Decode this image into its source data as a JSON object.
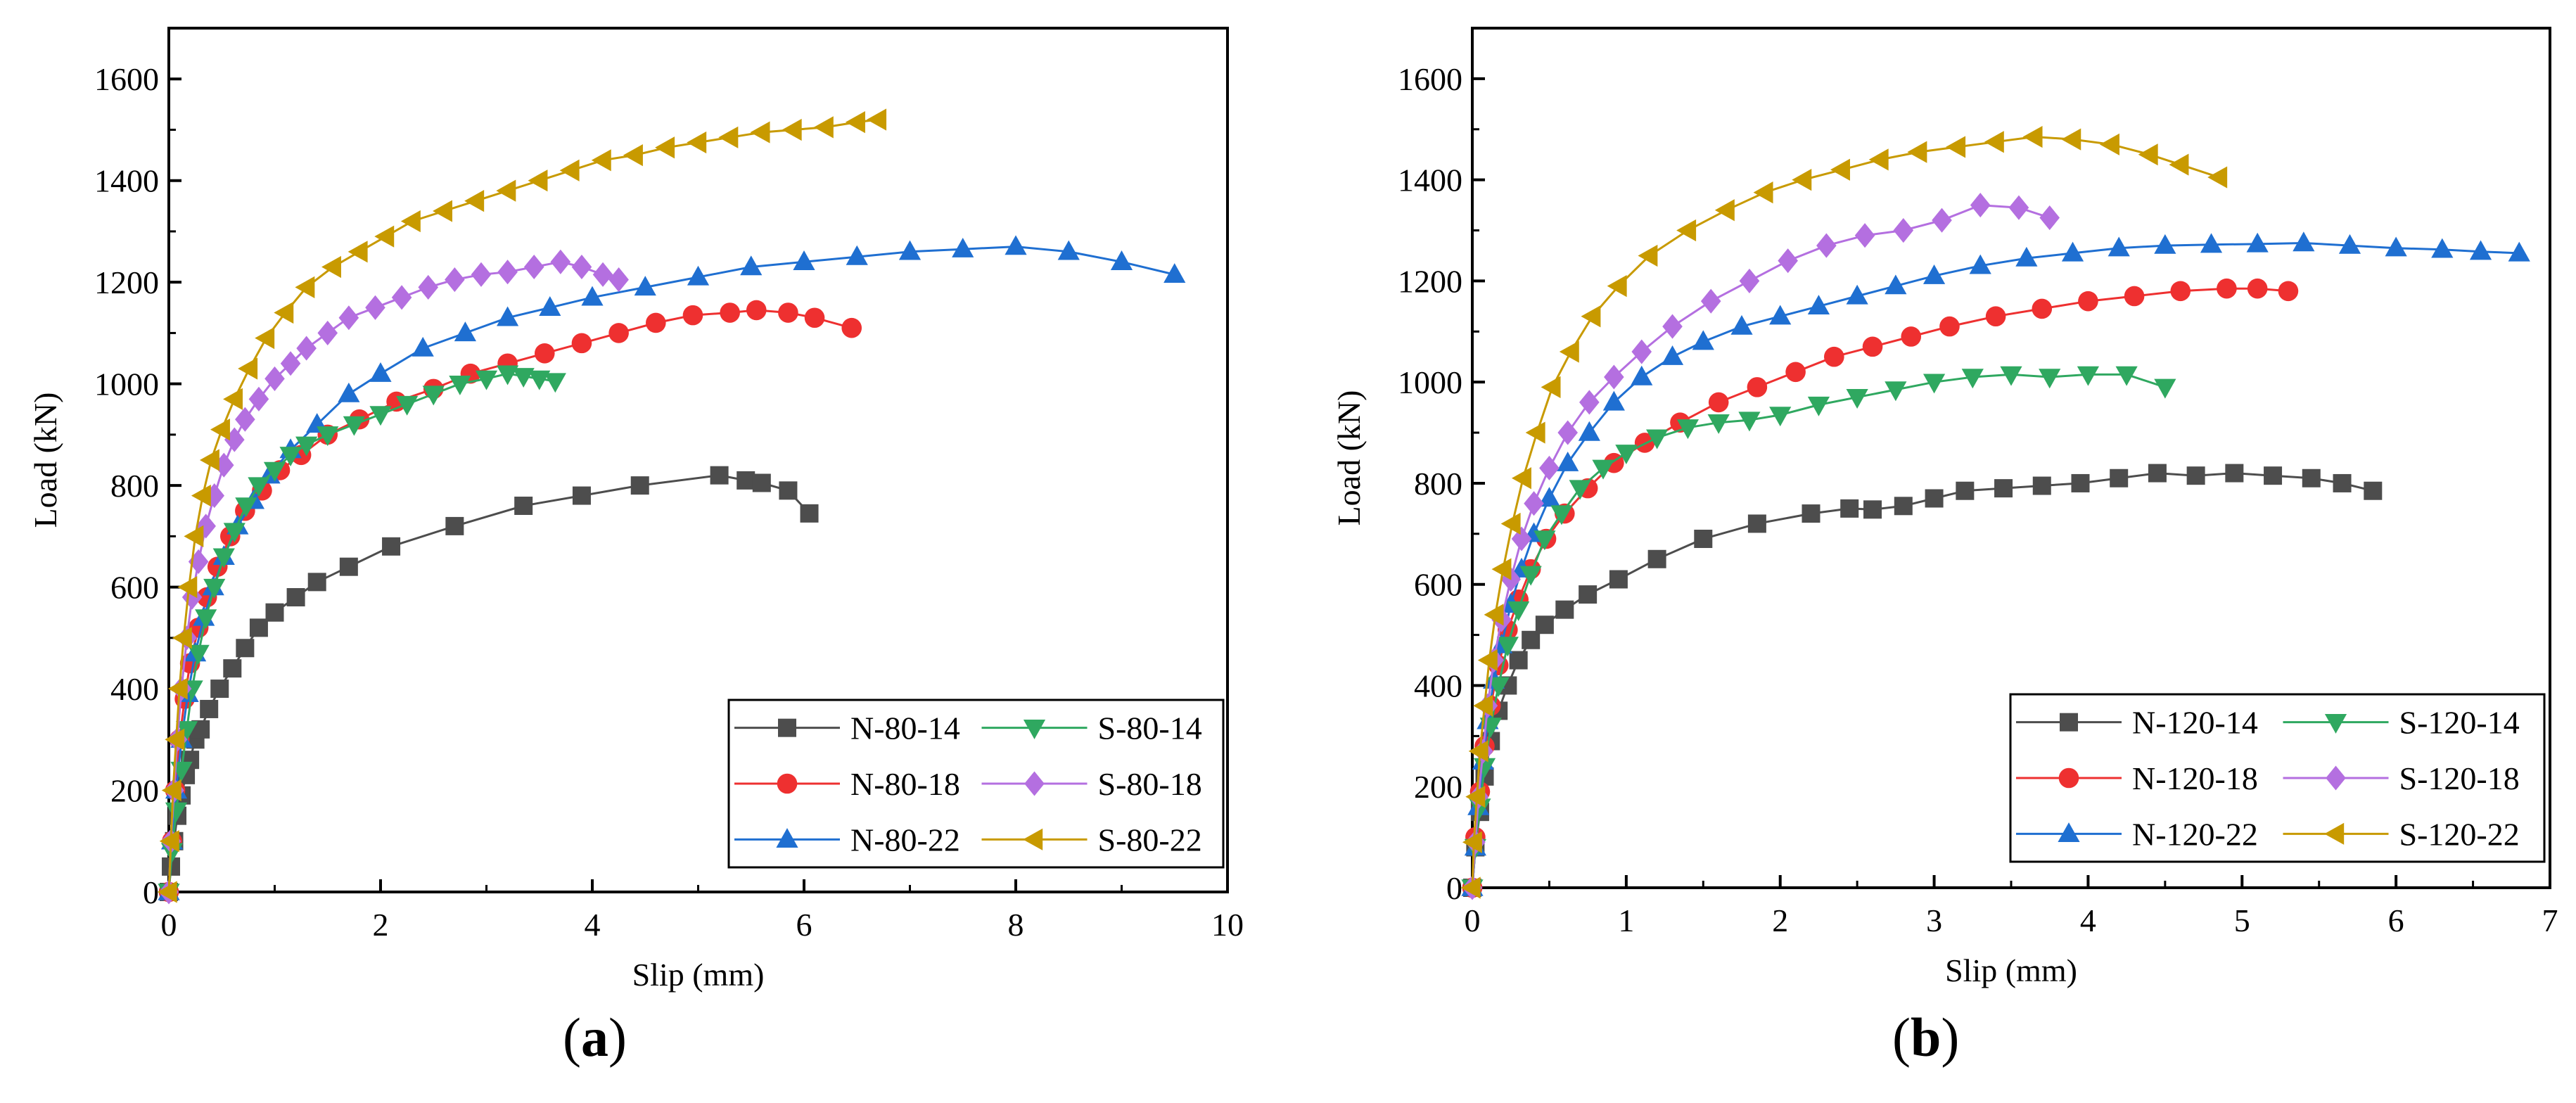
{
  "charts": [
    {
      "caption_letter": "a",
      "chart_data": {
        "type": "line",
        "xlabel": "Slip (mm)",
        "ylabel": "Load (kN)",
        "xlim": [
          0,
          10
        ],
        "ylim": [
          0,
          1700
        ],
        "xticks": [
          0,
          2,
          4,
          6,
          8,
          10
        ],
        "yticks": [
          0,
          200,
          400,
          600,
          800,
          1000,
          1200,
          1400,
          1600
        ],
        "legend_position": "bottom-right",
        "legend_columns": 2,
        "series": [
          {
            "name": "N-80-14",
            "color": "#4d4d4d",
            "marker": "square",
            "x": [
              0,
              0.02,
              0.05,
              0.08,
              0.12,
              0.16,
              0.2,
              0.25,
              0.3,
              0.38,
              0.48,
              0.6,
              0.72,
              0.85,
              1.0,
              1.2,
              1.4,
              1.7,
              2.1,
              2.7,
              3.35,
              3.9,
              4.45,
              5.2,
              5.45,
              5.6,
              5.85,
              6.05
            ],
            "y": [
              0,
              50,
              100,
              150,
              190,
              230,
              260,
              300,
              320,
              360,
              400,
              440,
              480,
              520,
              550,
              580,
              610,
              640,
              680,
              720,
              760,
              780,
              800,
              820,
              810,
              805,
              790,
              745
            ]
          },
          {
            "name": "N-80-18",
            "color": "#ee3030",
            "marker": "circle",
            "x": [
              0,
              0.03,
              0.06,
              0.1,
              0.15,
              0.2,
              0.28,
              0.36,
              0.46,
              0.58,
              0.72,
              0.88,
              1.05,
              1.25,
              1.5,
              1.8,
              2.15,
              2.5,
              2.85,
              3.2,
              3.55,
              3.9,
              4.25,
              4.6,
              4.95,
              5.3,
              5.55,
              5.85,
              6.1,
              6.45
            ],
            "y": [
              0,
              100,
              200,
              300,
              380,
              450,
              520,
              580,
              640,
              700,
              750,
              790,
              830,
              860,
              900,
              930,
              965,
              990,
              1020,
              1040,
              1060,
              1080,
              1100,
              1120,
              1135,
              1140,
              1145,
              1140,
              1130,
              1110
            ]
          },
          {
            "name": "N-80-22",
            "color": "#1f6fd1",
            "marker": "triangle-up",
            "x": [
              0,
              0.03,
              0.07,
              0.12,
              0.18,
              0.25,
              0.33,
              0.42,
              0.52,
              0.65,
              0.8,
              0.95,
              1.15,
              1.4,
              1.7,
              2.0,
              2.4,
              2.8,
              3.2,
              3.6,
              4.0,
              4.5,
              5.0,
              5.5,
              6.0,
              6.5,
              7.0,
              7.5,
              8.0,
              8.5,
              9.0,
              9.5
            ],
            "y": [
              0,
              100,
              200,
              300,
              390,
              470,
              540,
              600,
              660,
              720,
              770,
              820,
              870,
              920,
              980,
              1020,
              1070,
              1100,
              1130,
              1150,
              1170,
              1190,
              1210,
              1230,
              1240,
              1250,
              1260,
              1265,
              1270,
              1260,
              1240,
              1215
            ]
          },
          {
            "name": "S-80-14",
            "color": "#2fa860",
            "marker": "triangle-down",
            "x": [
              0,
              0.03,
              0.07,
              0.12,
              0.17,
              0.22,
              0.28,
              0.35,
              0.43,
              0.52,
              0.62,
              0.73,
              0.85,
              1.0,
              1.15,
              1.3,
              1.5,
              1.75,
              2.0,
              2.25,
              2.5,
              2.75,
              3.0,
              3.2,
              3.35,
              3.5,
              3.65
            ],
            "y": [
              0,
              80,
              160,
              240,
              320,
              400,
              470,
              540,
              600,
              660,
              710,
              760,
              800,
              830,
              860,
              880,
              900,
              920,
              940,
              960,
              980,
              1000,
              1010,
              1020,
              1015,
              1010,
              1005
            ]
          },
          {
            "name": "S-80-18",
            "color": "#b46fe0",
            "marker": "diamond",
            "x": [
              0,
              0.02,
              0.05,
              0.08,
              0.12,
              0.17,
              0.22,
              0.28,
              0.35,
              0.43,
              0.52,
              0.62,
              0.72,
              0.85,
              1.0,
              1.15,
              1.3,
              1.5,
              1.7,
              1.95,
              2.2,
              2.45,
              2.7,
              2.95,
              3.2,
              3.45,
              3.7,
              3.9,
              4.1,
              4.25
            ],
            "y": [
              0,
              100,
              200,
              300,
              400,
              500,
              580,
              650,
              720,
              780,
              840,
              890,
              930,
              970,
              1010,
              1040,
              1070,
              1100,
              1130,
              1150,
              1170,
              1190,
              1205,
              1215,
              1220,
              1230,
              1240,
              1230,
              1215,
              1205
            ]
          },
          {
            "name": "S-80-22",
            "color": "#c89a00",
            "marker": "triangle-left",
            "x": [
              0,
              0.02,
              0.04,
              0.07,
              0.1,
              0.14,
              0.19,
              0.25,
              0.32,
              0.4,
              0.5,
              0.62,
              0.76,
              0.92,
              1.1,
              1.3,
              1.55,
              1.8,
              2.05,
              2.3,
              2.6,
              2.9,
              3.2,
              3.5,
              3.8,
              4.1,
              4.4,
              4.7,
              5.0,
              5.3,
              5.6,
              5.9,
              6.2,
              6.5,
              6.7
            ],
            "y": [
              0,
              100,
              200,
              300,
              400,
              500,
              600,
              700,
              780,
              850,
              910,
              970,
              1030,
              1090,
              1140,
              1190,
              1230,
              1260,
              1290,
              1320,
              1340,
              1360,
              1380,
              1400,
              1420,
              1440,
              1450,
              1465,
              1475,
              1485,
              1495,
              1500,
              1505,
              1515,
              1520
            ]
          }
        ]
      }
    },
    {
      "caption_letter": "b",
      "chart_data": {
        "type": "line",
        "xlabel": "Slip (mm)",
        "ylabel": "Load (kN)",
        "xlim": [
          0,
          7
        ],
        "ylim": [
          0,
          1700
        ],
        "xticks": [
          0,
          1,
          2,
          3,
          4,
          5,
          6,
          7
        ],
        "yticks": [
          0,
          200,
          400,
          600,
          800,
          1000,
          1200,
          1400,
          1600
        ],
        "legend_position": "bottom-right",
        "legend_columns": 2,
        "series": [
          {
            "name": "N-120-14",
            "color": "#4d4d4d",
            "marker": "square",
            "x": [
              0,
              0.02,
              0.05,
              0.08,
              0.12,
              0.17,
              0.23,
              0.3,
              0.38,
              0.47,
              0.6,
              0.75,
              0.95,
              1.2,
              1.5,
              1.85,
              2.2,
              2.45,
              2.6,
              2.8,
              3.0,
              3.2,
              3.45,
              3.7,
              3.95,
              4.2,
              4.45,
              4.7,
              4.95,
              5.2,
              5.45,
              5.65,
              5.85
            ],
            "y": [
              0,
              80,
              150,
              220,
              290,
              350,
              400,
              450,
              490,
              520,
              550,
              580,
              610,
              650,
              690,
              720,
              740,
              750,
              748,
              755,
              770,
              785,
              790,
              795,
              800,
              810,
              820,
              815,
              820,
              815,
              810,
              800,
              785
            ]
          },
          {
            "name": "N-120-18",
            "color": "#ee3030",
            "marker": "circle",
            "x": [
              0,
              0.02,
              0.05,
              0.08,
              0.12,
              0.17,
              0.23,
              0.3,
              0.38,
              0.48,
              0.6,
              0.75,
              0.92,
              1.12,
              1.35,
              1.6,
              1.85,
              2.1,
              2.35,
              2.6,
              2.85,
              3.1,
              3.4,
              3.7,
              4.0,
              4.3,
              4.6,
              4.9,
              5.1,
              5.3
            ],
            "y": [
              0,
              100,
              190,
              280,
              360,
              440,
              510,
              570,
              630,
              690,
              740,
              790,
              840,
              880,
              920,
              960,
              990,
              1020,
              1050,
              1070,
              1090,
              1110,
              1130,
              1145,
              1160,
              1170,
              1180,
              1185,
              1185,
              1180
            ]
          },
          {
            "name": "N-120-22",
            "color": "#1f6fd1",
            "marker": "triangle-up",
            "x": [
              0,
              0.02,
              0.04,
              0.07,
              0.1,
              0.14,
              0.19,
              0.25,
              0.32,
              0.4,
              0.5,
              0.62,
              0.76,
              0.92,
              1.1,
              1.3,
              1.5,
              1.75,
              2.0,
              2.25,
              2.5,
              2.75,
              3.0,
              3.3,
              3.6,
              3.9,
              4.2,
              4.5,
              4.8,
              5.1,
              5.4,
              5.7,
              6.0,
              6.3,
              6.55,
              6.8
            ],
            "y": [
              0,
              80,
              160,
              250,
              330,
              410,
              480,
              560,
              630,
              700,
              770,
              840,
              900,
              960,
              1010,
              1050,
              1080,
              1110,
              1130,
              1150,
              1170,
              1190,
              1210,
              1230,
              1245,
              1255,
              1265,
              1270,
              1272,
              1273,
              1275,
              1270,
              1265,
              1262,
              1258,
              1255
            ]
          },
          {
            "name": "S-120-14",
            "color": "#2fa860",
            "marker": "triangle-down",
            "x": [
              0,
              0.02,
              0.05,
              0.08,
              0.12,
              0.17,
              0.23,
              0.3,
              0.38,
              0.47,
              0.58,
              0.7,
              0.85,
              1.0,
              1.2,
              1.4,
              1.6,
              1.8,
              2.0,
              2.25,
              2.5,
              2.75,
              3.0,
              3.25,
              3.5,
              3.75,
              4.0,
              4.25,
              4.5
            ],
            "y": [
              0,
              80,
              160,
              240,
              320,
              400,
              480,
              550,
              620,
              690,
              740,
              790,
              830,
              860,
              890,
              910,
              920,
              925,
              935,
              955,
              970,
              985,
              1000,
              1010,
              1015,
              1010,
              1015,
              1015,
              990
            ]
          },
          {
            "name": "S-120-18",
            "color": "#b46fe0",
            "marker": "diamond",
            "x": [
              0,
              0.02,
              0.04,
              0.07,
              0.1,
              0.14,
              0.19,
              0.25,
              0.32,
              0.4,
              0.5,
              0.62,
              0.76,
              0.92,
              1.1,
              1.3,
              1.55,
              1.8,
              2.05,
              2.3,
              2.55,
              2.8,
              3.05,
              3.3,
              3.55,
              3.75
            ],
            "y": [
              0,
              90,
              180,
              270,
              360,
              450,
              530,
              610,
              690,
              760,
              830,
              900,
              960,
              1010,
              1060,
              1110,
              1160,
              1200,
              1240,
              1270,
              1290,
              1300,
              1320,
              1350,
              1345,
              1325
            ]
          },
          {
            "name": "S-120-22",
            "color": "#c89a00",
            "marker": "triangle-left",
            "x": [
              0,
              0.01,
              0.03,
              0.05,
              0.08,
              0.11,
              0.15,
              0.2,
              0.26,
              0.33,
              0.42,
              0.52,
              0.64,
              0.78,
              0.95,
              1.15,
              1.4,
              1.65,
              1.9,
              2.15,
              2.4,
              2.65,
              2.9,
              3.15,
              3.4,
              3.65,
              3.9,
              4.15,
              4.4,
              4.6,
              4.85
            ],
            "y": [
              0,
              90,
              180,
              270,
              360,
              450,
              540,
              630,
              720,
              810,
              900,
              990,
              1060,
              1130,
              1190,
              1250,
              1300,
              1340,
              1375,
              1400,
              1420,
              1440,
              1455,
              1465,
              1475,
              1485,
              1480,
              1470,
              1450,
              1430,
              1405
            ]
          }
        ]
      }
    }
  ]
}
